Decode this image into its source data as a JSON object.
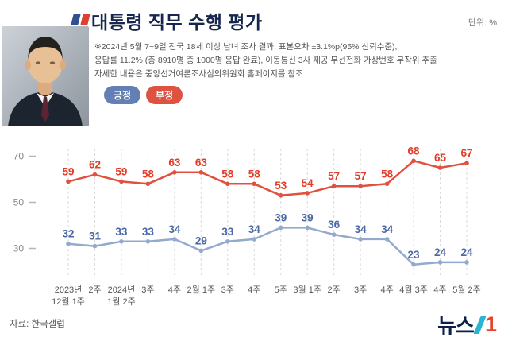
{
  "header": {
    "title": "대통령 직무 수행 평가",
    "unit_label": "단위: %"
  },
  "notes": {
    "line1": "※2024년 5월 7~9일 전국 18세 이상 남녀 조사 결과, 표본오차 ±3.1%p(95% 신뢰수준),",
    "line2": "응답률 11.2% (총 8910명 중 1000명 응답 완료), 이동통신 3사 제공 무선전화 가상번호 무작위 추출",
    "line3": "자세한 내용은 중앙선거여론조사심의위원회 홈페이지를 참조"
  },
  "legend": [
    {
      "label": "긍정",
      "color": "#647fb4"
    },
    {
      "label": "부정",
      "color": "#dd5241"
    }
  ],
  "chart_data": {
    "type": "line",
    "title": "대통령 직무 수행 평가",
    "unit": "%",
    "x_labels": [
      {
        "line1": "2023년",
        "line2": "12월 1주"
      },
      {
        "line1": "2주"
      },
      {
        "line1": "2024년",
        "line2": "1월 2주"
      },
      {
        "line1": "3주"
      },
      {
        "line1": "4주"
      },
      {
        "line1": "2월 1주"
      },
      {
        "line1": "3주"
      },
      {
        "line1": "4주"
      },
      {
        "line1": "5주"
      },
      {
        "line1": "3월 1주"
      },
      {
        "line1": "2주"
      },
      {
        "line1": "3주"
      },
      {
        "line1": "4주"
      },
      {
        "line1": "4월 3주"
      },
      {
        "line1": "4주"
      },
      {
        "line1": "5월 2주"
      }
    ],
    "series": [
      {
        "name": "긍정",
        "line_color": "#93a9cd",
        "label_color": "#4a68a4",
        "values": [
          32,
          31,
          33,
          33,
          34,
          29,
          33,
          34,
          39,
          39,
          36,
          34,
          34,
          23,
          24,
          24
        ]
      },
      {
        "name": "부정",
        "line_color": "#e05140",
        "label_color": "#e33c28",
        "values": [
          59,
          62,
          59,
          58,
          63,
          63,
          58,
          58,
          53,
          54,
          57,
          57,
          58,
          68,
          65,
          67
        ]
      }
    ],
    "y_ticks": [
      30,
      50,
      70
    ],
    "ylim": [
      20,
      78
    ],
    "grid": "vertical-dashed",
    "legend_position": "top-left"
  },
  "footer": {
    "source": "자료: 한국갤럽",
    "logo_text": "뉴스",
    "logo_number": "1"
  }
}
